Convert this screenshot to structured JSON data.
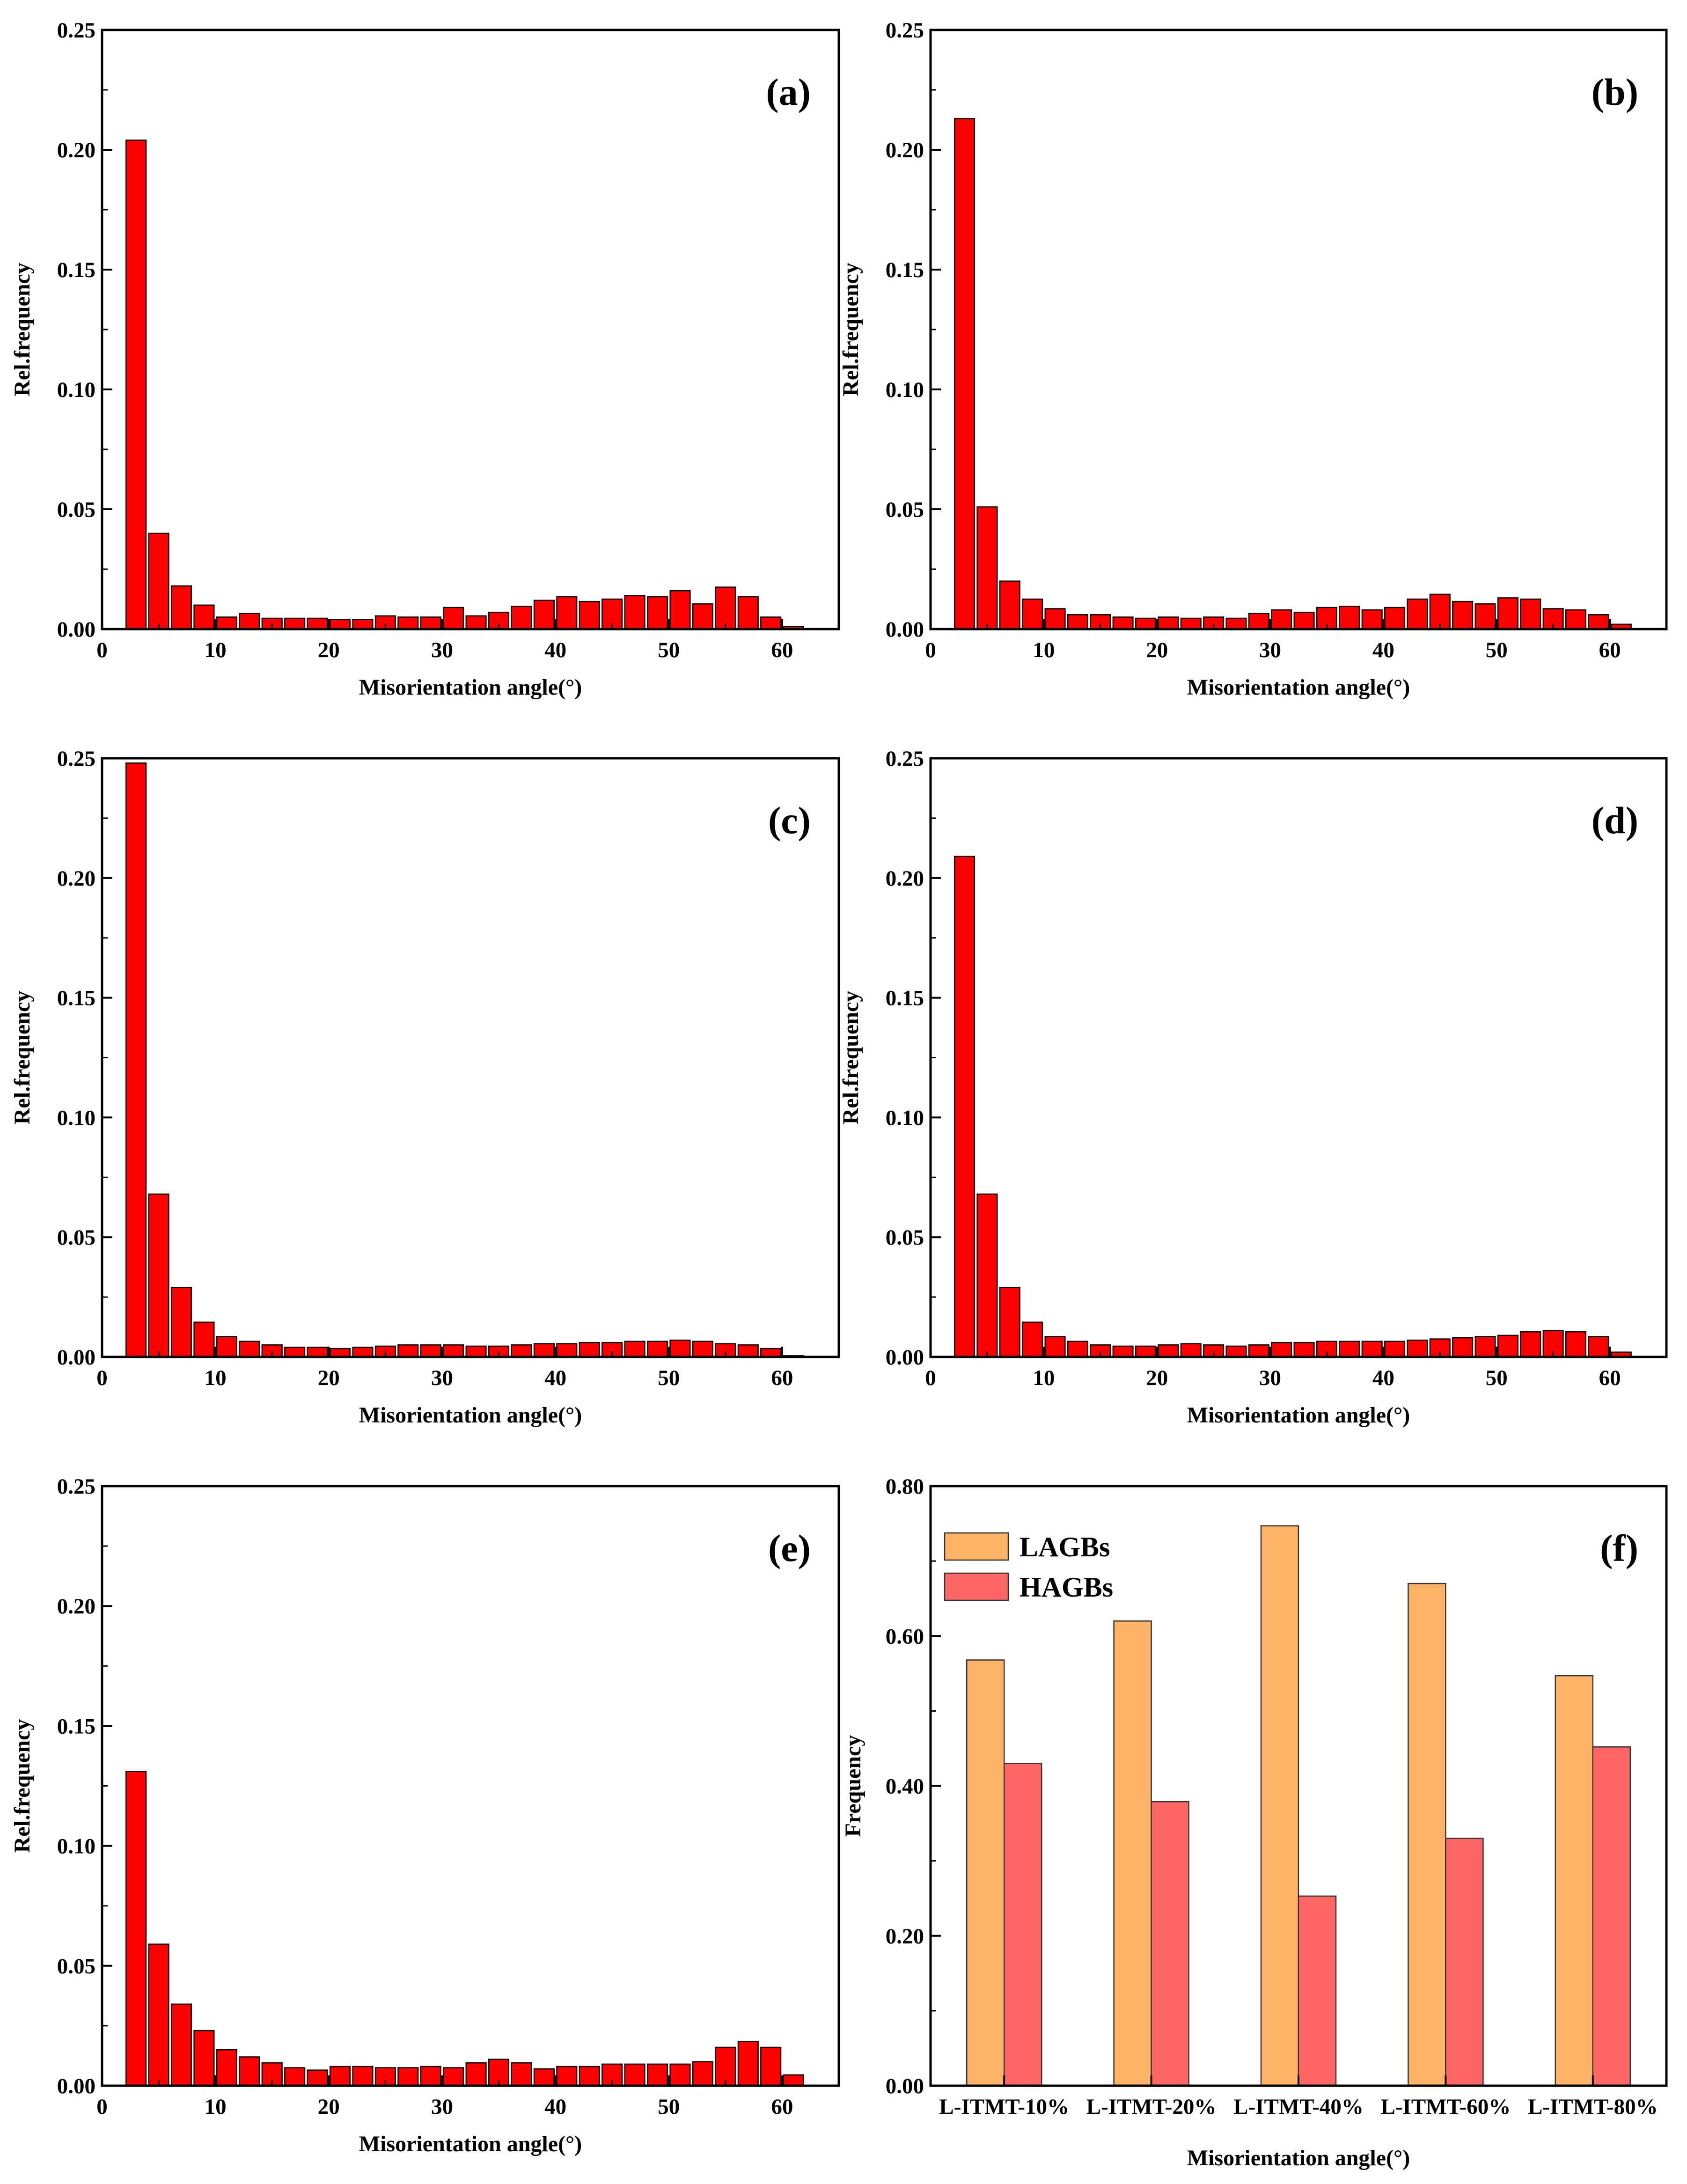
{
  "chart_data": [
    {
      "id": "a",
      "type": "bar",
      "panel_label": "(a)",
      "xlabel": "Misorientation angle(°)",
      "ylabel": "Rel.frequency",
      "xlim": [
        0,
        65
      ],
      "ylim": [
        0,
        0.25
      ],
      "xticks": [
        "0",
        "10",
        "20",
        "30",
        "40",
        "50",
        "60"
      ],
      "yticks": [
        "0.00",
        "0.05",
        "0.10",
        "0.15",
        "0.20",
        "0.25"
      ],
      "bar_color": "#ff0000",
      "bin_centers": [
        3,
        5,
        7,
        9,
        11,
        13,
        15,
        17,
        19,
        21,
        23,
        25,
        27,
        29,
        31,
        33,
        35,
        37,
        39,
        41,
        43,
        45,
        47,
        49,
        51,
        53,
        55,
        57,
        59,
        61
      ],
      "values": [
        0.204,
        0.04,
        0.018,
        0.01,
        0.005,
        0.0065,
        0.0045,
        0.0045,
        0.0045,
        0.004,
        0.004,
        0.0055,
        0.005,
        0.005,
        0.009,
        0.0055,
        0.007,
        0.0095,
        0.012,
        0.0135,
        0.0115,
        0.0125,
        0.014,
        0.0135,
        0.016,
        0.0105,
        0.0175,
        0.0135,
        0.005,
        0.001
      ]
    },
    {
      "id": "b",
      "type": "bar",
      "panel_label": "(b)",
      "xlabel": "Misorientation angle(°)",
      "ylabel": "Rel.frequency",
      "xlim": [
        0,
        65
      ],
      "ylim": [
        0,
        0.25
      ],
      "xticks": [
        "0",
        "10",
        "20",
        "30",
        "40",
        "50",
        "60"
      ],
      "yticks": [
        "0.00",
        "0.05",
        "0.10",
        "0.15",
        "0.20",
        "0.25"
      ],
      "bar_color": "#ff0000",
      "bin_centers": [
        3,
        5,
        7,
        9,
        11,
        13,
        15,
        17,
        19,
        21,
        23,
        25,
        27,
        29,
        31,
        33,
        35,
        37,
        39,
        41,
        43,
        45,
        47,
        49,
        51,
        53,
        55,
        57,
        59,
        61
      ],
      "values": [
        0.213,
        0.051,
        0.02,
        0.0125,
        0.0085,
        0.006,
        0.006,
        0.005,
        0.0045,
        0.005,
        0.0045,
        0.005,
        0.0045,
        0.0065,
        0.008,
        0.007,
        0.009,
        0.0095,
        0.008,
        0.009,
        0.0125,
        0.0145,
        0.0115,
        0.0105,
        0.013,
        0.0125,
        0.0085,
        0.008,
        0.006,
        0.002
      ]
    },
    {
      "id": "c",
      "type": "bar",
      "panel_label": "(c)",
      "xlabel": "Misorientation angle(°)",
      "ylabel": "Rel.frequency",
      "xlim": [
        0,
        65
      ],
      "ylim": [
        0,
        0.25
      ],
      "xticks": [
        "0",
        "10",
        "20",
        "30",
        "40",
        "50",
        "60"
      ],
      "yticks": [
        "0.00",
        "0.05",
        "0.10",
        "0.15",
        "0.20",
        "0.25"
      ],
      "bar_color": "#ff0000",
      "bin_centers": [
        3,
        5,
        7,
        9,
        11,
        13,
        15,
        17,
        19,
        21,
        23,
        25,
        27,
        29,
        31,
        33,
        35,
        37,
        39,
        41,
        43,
        45,
        47,
        49,
        51,
        53,
        55,
        57,
        59,
        61
      ],
      "values": [
        0.248,
        0.068,
        0.029,
        0.0145,
        0.0085,
        0.0065,
        0.005,
        0.004,
        0.004,
        0.0035,
        0.004,
        0.0045,
        0.005,
        0.005,
        0.005,
        0.0045,
        0.0045,
        0.005,
        0.0055,
        0.0055,
        0.006,
        0.006,
        0.0065,
        0.0065,
        0.007,
        0.0065,
        0.0055,
        0.005,
        0.0035,
        0.0005
      ]
    },
    {
      "id": "d",
      "type": "bar",
      "panel_label": "(d)",
      "xlabel": "Misorientation angle(°)",
      "ylabel": "Rel.frequency",
      "xlim": [
        0,
        65
      ],
      "ylim": [
        0,
        0.25
      ],
      "xticks": [
        "0",
        "10",
        "20",
        "30",
        "40",
        "50",
        "60"
      ],
      "yticks": [
        "0.00",
        "0.05",
        "0.10",
        "0.15",
        "0.20",
        "0.25"
      ],
      "bar_color": "#ff0000",
      "bin_centers": [
        3,
        5,
        7,
        9,
        11,
        13,
        15,
        17,
        19,
        21,
        23,
        25,
        27,
        29,
        31,
        33,
        35,
        37,
        39,
        41,
        43,
        45,
        47,
        49,
        51,
        53,
        55,
        57,
        59,
        61
      ],
      "values": [
        0.209,
        0.068,
        0.029,
        0.0145,
        0.0085,
        0.0065,
        0.005,
        0.0045,
        0.0045,
        0.005,
        0.0055,
        0.005,
        0.0045,
        0.005,
        0.006,
        0.006,
        0.0065,
        0.0065,
        0.0065,
        0.0065,
        0.007,
        0.0075,
        0.008,
        0.0085,
        0.009,
        0.0105,
        0.011,
        0.0105,
        0.0085,
        0.002
      ]
    },
    {
      "id": "e",
      "type": "bar",
      "panel_label": "(e)",
      "xlabel": "Misorientation angle(°)",
      "ylabel": "Rel.frequency",
      "xlim": [
        0,
        65
      ],
      "ylim": [
        0,
        0.25
      ],
      "xticks": [
        "0",
        "10",
        "20",
        "30",
        "40",
        "50",
        "60"
      ],
      "yticks": [
        "0.00",
        "0.05",
        "0.10",
        "0.15",
        "0.20",
        "0.25"
      ],
      "bar_color": "#ff0000",
      "bin_centers": [
        3,
        5,
        7,
        9,
        11,
        13,
        15,
        17,
        19,
        21,
        23,
        25,
        27,
        29,
        31,
        33,
        35,
        37,
        39,
        41,
        43,
        45,
        47,
        49,
        51,
        53,
        55,
        57,
        59,
        61
      ],
      "values": [
        0.131,
        0.059,
        0.034,
        0.023,
        0.015,
        0.012,
        0.0095,
        0.0075,
        0.0065,
        0.008,
        0.008,
        0.0075,
        0.0075,
        0.008,
        0.0075,
        0.0095,
        0.011,
        0.0095,
        0.007,
        0.008,
        0.008,
        0.009,
        0.009,
        0.009,
        0.009,
        0.01,
        0.016,
        0.0185,
        0.016,
        0.0045
      ]
    },
    {
      "id": "f",
      "type": "bar",
      "panel_label": "(f)",
      "xlabel": "Misorientation angle(°)",
      "ylabel": "Frequency",
      "ylim": [
        0,
        0.8
      ],
      "yticks": [
        "0.00",
        "0.20",
        "0.40",
        "0.60",
        "0.80"
      ],
      "categories": [
        "L-ITMT-10%",
        "L-ITMT-20%",
        "L-ITMT-40%",
        "L-ITMT-60%",
        "L-ITMT-80%"
      ],
      "series": [
        {
          "name": "LAGBs",
          "color": "#ffb366",
          "values": [
            0.568,
            0.62,
            0.747,
            0.67,
            0.547
          ]
        },
        {
          "name": "HAGBs",
          "color": "#ff6666",
          "values": [
            0.43,
            0.379,
            0.253,
            0.33,
            0.452
          ]
        }
      ],
      "legend": "top-left"
    }
  ]
}
